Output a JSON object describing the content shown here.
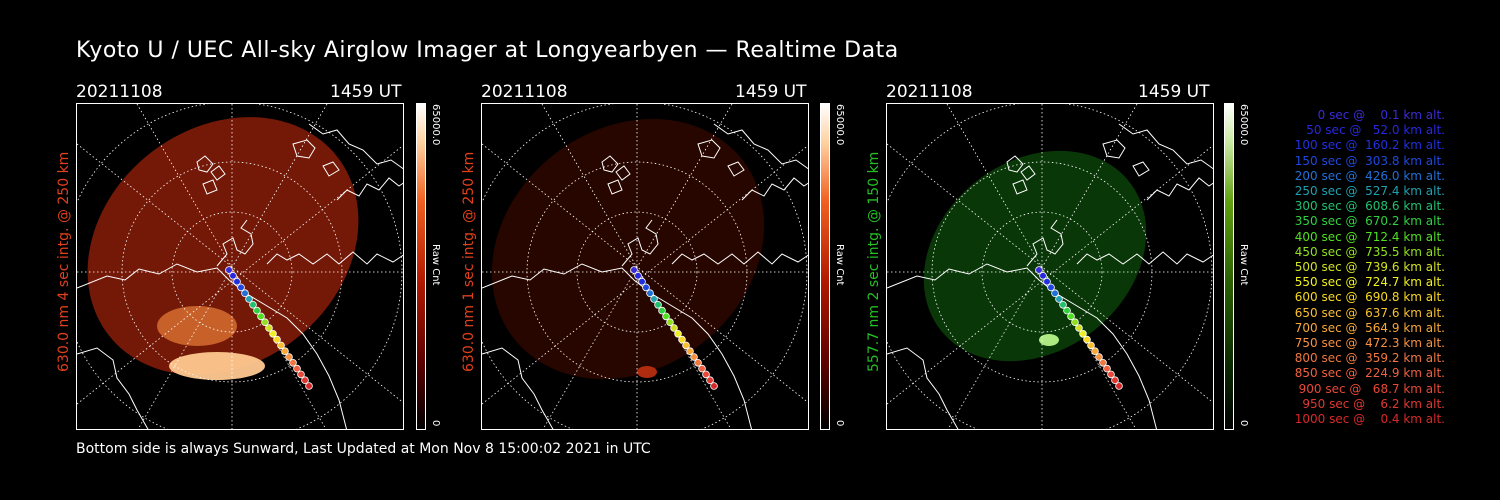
{
  "title": "Kyoto U / UEC All-sky Airglow Imager at Longyearbyen — Realtime Data",
  "footer": "Bottom side is always Sunward, Last Updated at Mon Nov  8 15:00:02 2021 in UTC",
  "panels": [
    {
      "date": "20211108",
      "time": "1459 UT",
      "label": "630.0 nm 4 sec intg. @ 250 km",
      "label_color": "#e0401a",
      "cb_max": "65000.0",
      "cb_unit": "Raw Cnt",
      "cb_min": "0",
      "channel": "red-630-long"
    },
    {
      "date": "20211108",
      "time": "1459 UT",
      "label": "630.0 nm 1 sec intg. @ 250 km",
      "label_color": "#e0401a",
      "cb_max": "65000.0",
      "cb_unit": "Raw Cnt",
      "cb_min": "0",
      "channel": "red-630-short"
    },
    {
      "date": "20211108",
      "time": "1459 UT",
      "label": "557.7 nm 2 sec intg. @ 150 km",
      "label_color": "#22c022",
      "cb_max": "65000.0",
      "cb_unit": "Raw Cnt",
      "cb_min": "0",
      "channel": "green-557"
    }
  ],
  "legend": [
    {
      "text": "   0 sec @    0.1 km alt.",
      "color": "#3a2ad8"
    },
    {
      "text": "  50 sec @   52.0 km alt.",
      "color": "#2828e0"
    },
    {
      "text": " 100 sec @  160.2 km alt.",
      "color": "#2030e0"
    },
    {
      "text": " 150 sec @  303.8 km alt.",
      "color": "#2048e0"
    },
    {
      "text": " 200 sec @  426.0 km alt.",
      "color": "#2070d8"
    },
    {
      "text": " 250 sec @  527.4 km alt.",
      "color": "#20a0b0"
    },
    {
      "text": " 300 sec @  608.6 km alt.",
      "color": "#20c070"
    },
    {
      "text": " 350 sec @  670.2 km alt.",
      "color": "#30d040"
    },
    {
      "text": " 400 sec @  712.4 km alt.",
      "color": "#50e020"
    },
    {
      "text": " 450 sec @  735.5 km alt.",
      "color": "#90e020"
    },
    {
      "text": " 500 sec @  739.6 km alt.",
      "color": "#d0e020"
    },
    {
      "text": " 550 sec @  724.7 km alt.",
      "color": "#f0f020"
    },
    {
      "text": " 600 sec @  690.8 km alt.",
      "color": "#f8d820"
    },
    {
      "text": " 650 sec @  637.6 km alt.",
      "color": "#f8c030"
    },
    {
      "text": " 700 sec @  564.9 km alt.",
      "color": "#f8a838"
    },
    {
      "text": " 750 sec @  472.3 km alt.",
      "color": "#f89040"
    },
    {
      "text": " 800 sec @  359.2 km alt.",
      "color": "#f07840"
    },
    {
      "text": " 850 sec @  224.9 km alt.",
      "color": "#f06040"
    },
    {
      "text": " 900 sec @   68.7 km alt.",
      "color": "#e84838"
    },
    {
      "text": " 950 sec @    6.2 km alt.",
      "color": "#e03830"
    },
    {
      "text": "1000 sec @    0.4 km alt.",
      "color": "#d82828"
    }
  ]
}
